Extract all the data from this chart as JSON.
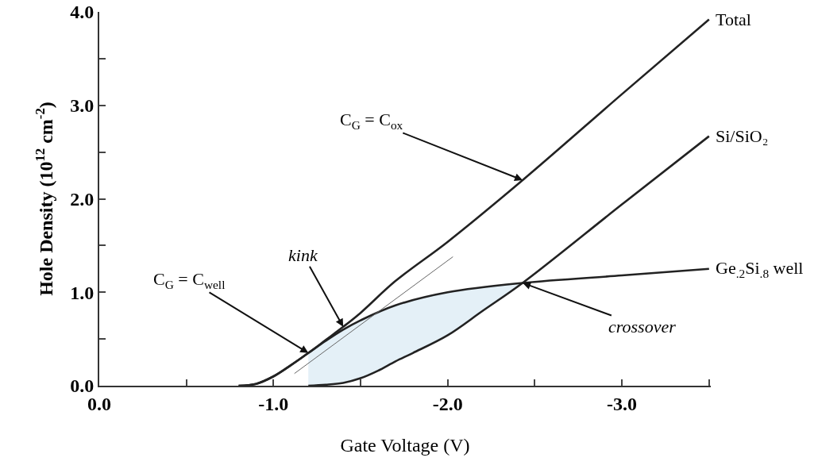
{
  "chart_data": {
    "type": "line",
    "xlabel": "Gate Voltage (V)",
    "ylabel": "Hole Density (10$^{12}$ cm$^{-2}$)",
    "xlim": [
      0,
      -3.51
    ],
    "ylim": [
      0,
      4
    ],
    "xticks": [
      {
        "value": 0,
        "label": "0.0"
      },
      {
        "value": -0.5,
        "label": null
      },
      {
        "value": -1,
        "label": "-1.0"
      },
      {
        "value": -1.5,
        "label": null
      },
      {
        "value": -2,
        "label": "-2.0"
      },
      {
        "value": -2.5,
        "label": null
      },
      {
        "value": -3,
        "label": "-3.0"
      },
      {
        "value": -3.5,
        "label": null
      }
    ],
    "yticks": [
      {
        "value": 0,
        "label": "0.0"
      },
      {
        "value": 0.5,
        "label": null
      },
      {
        "value": 1,
        "label": "1.0"
      },
      {
        "value": 1.5,
        "label": null
      },
      {
        "value": 2,
        "label": "2.0"
      },
      {
        "value": 2.5,
        "label": null
      },
      {
        "value": 3,
        "label": "3.0"
      },
      {
        "value": 3.5,
        "label": null
      },
      {
        "value": 4,
        "label": "4.0"
      }
    ],
    "grid": false,
    "legend": false,
    "marker": "none",
    "line_style": "solid",
    "series": [
      {
        "name": "Total",
        "color": "#222222",
        "x": [
          -0.8,
          -0.9,
          -1.0,
          -1.1,
          -1.2,
          -1.3,
          -1.4,
          -1.5,
          -1.7,
          -2.0,
          -2.43,
          -3.0,
          -3.5
        ],
        "values": [
          0,
          0.02,
          0.1,
          0.22,
          0.35,
          0.49,
          0.63,
          0.78,
          1.12,
          1.54,
          2.2,
          3.12,
          3.92
        ]
      },
      {
        "name": "Si/SiO₂",
        "color": "#222222",
        "x": [
          -1.2,
          -1.3,
          -1.4,
          -1.5,
          -1.6,
          -1.7,
          -1.8,
          -2.0,
          -2.2,
          -2.43,
          -3.0,
          -3.5
        ],
        "values": [
          0,
          0.01,
          0.03,
          0.08,
          0.16,
          0.26,
          0.35,
          0.54,
          0.8,
          1.1,
          1.94,
          2.67
        ]
      },
      {
        "name": "Ge$_{.2}$Si$_{.8}$ well",
        "color": "#222222",
        "x": [
          -0.8,
          -0.9,
          -1.0,
          -1.1,
          -1.2,
          -1.3,
          -1.4,
          -1.5,
          -1.7,
          -2.0,
          -2.43,
          -3.0,
          -3.5
        ],
        "values": [
          0,
          0.02,
          0.1,
          0.22,
          0.35,
          0.48,
          0.6,
          0.7,
          0.86,
          1.0,
          1.1,
          1.18,
          1.25
        ],
        "lower": [
          null,
          null,
          null,
          null,
          0,
          0.01,
          0.03,
          0.08,
          0.26,
          0.54,
          1.1,
          null,
          null
        ],
        "upper": [
          null,
          null,
          null,
          null,
          0.35,
          0.48,
          0.6,
          0.7,
          0.86,
          1.0,
          1.1,
          null,
          null
        ]
      },
      {
        "type": "line",
        "color": "#666666",
        "x": [
          -1.12,
          -2.03
        ],
        "values": [
          0.13,
          1.38
        ]
      }
    ],
    "annotations": [
      {
        "text": "C$_{G}$ = C$_{ox}$",
        "x": -2.43,
        "y": 2.2
      },
      {
        "text": "kink",
        "x": -1.4,
        "y": 0.63
      },
      {
        "text": "C$_{G}$ = C$_{well}$",
        "x": -1.2,
        "y": 0.35
      },
      {
        "text": "crossover",
        "x": -2.43,
        "y": 1.1
      }
    ]
  }
}
